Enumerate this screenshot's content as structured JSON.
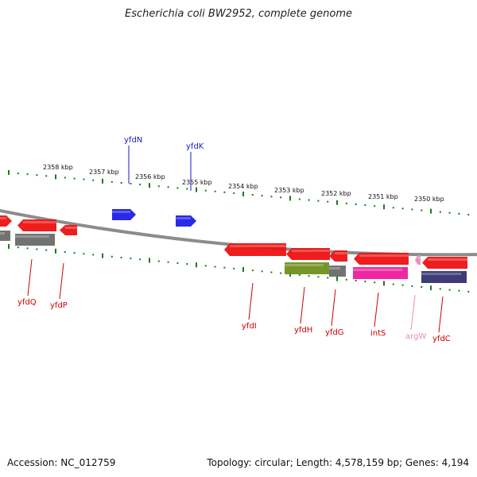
{
  "title": "Escherichia coli BW2952, complete genome",
  "footer": {
    "accession": "Accession: NC_012759",
    "stats": "Topology: circular; Length: 4,578,159 bp; Genes: 4,194"
  },
  "colors": {
    "tick": "#1a7a1a",
    "backbone": "#8c8c8c",
    "gene_red": "#ee1111",
    "gene_blue": "#1e1ee6",
    "gene_grey": "#6a6a6a",
    "gene_olive": "#6f8f1c",
    "gene_magenta": "#ee1c9c",
    "gene_navy": "#343070",
    "label_red": "#cc0000",
    "label_blue": "#1a1acc",
    "label_pink": "#ee88bb"
  },
  "scale_labels": [
    "2358 kbp",
    "2357 kbp",
    "2356 kbp",
    "2355 kbp",
    "2354 kbp",
    "2353 kbp",
    "2352 kbp",
    "2351 kbp",
    "2350 kbp"
  ],
  "gene_labels": [
    {
      "name": "yfdN",
      "color": "label_blue"
    },
    {
      "name": "yfdK",
      "color": "label_blue"
    },
    {
      "name": "yfdQ",
      "color": "label_red"
    },
    {
      "name": "yfdP",
      "color": "label_red"
    },
    {
      "name": "yfdI",
      "color": "label_red"
    },
    {
      "name": "yfdH",
      "color": "label_red"
    },
    {
      "name": "yfdG",
      "color": "label_red"
    },
    {
      "name": "intS",
      "color": "label_red"
    },
    {
      "name": "argW",
      "color": "label_pink"
    },
    {
      "name": "yfdC",
      "color": "label_red"
    }
  ]
}
